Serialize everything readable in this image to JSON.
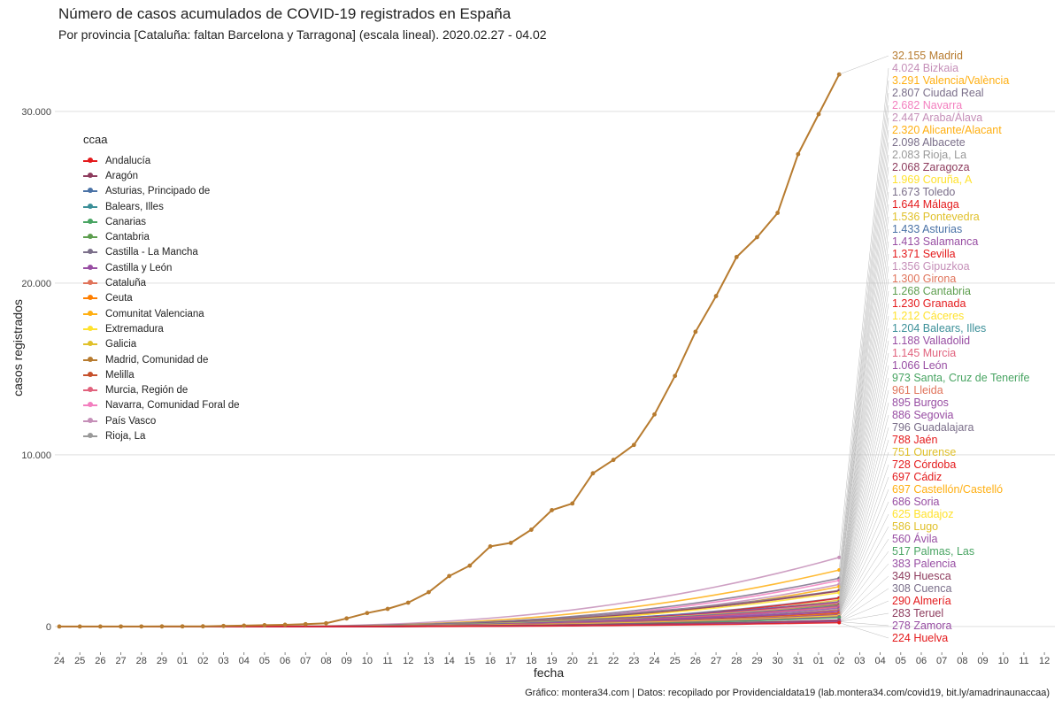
{
  "title": "Número de casos acumulados de COVID-19 registrados en España",
  "subtitle": "Por provincia [Cataluña: faltan Barcelona y Tarragona] (escala lineal). 2020.02.27 - 04.02",
  "caption": "Gráfico: montera34.com | Datos: recopilado por Providencialdata19 (lab.montera34.com/covid19, bit.ly/amadrinaunaccaa)",
  "legend_title": "ccaa",
  "chart_data": {
    "type": "line",
    "xlabel": "fecha",
    "ylabel": "casos registrados",
    "x_tick_labels": [
      "24",
      "25",
      "26",
      "27",
      "28",
      "29",
      "01",
      "02",
      "03",
      "04",
      "05",
      "06",
      "07",
      "08",
      "09",
      "10",
      "11",
      "12",
      "13",
      "14",
      "15",
      "16",
      "17",
      "18",
      "19",
      "20",
      "21",
      "22",
      "23",
      "24",
      "25",
      "26",
      "27",
      "28",
      "29",
      "30",
      "31",
      "01",
      "02",
      "03",
      "04",
      "05",
      "06",
      "07",
      "08",
      "09",
      "10",
      "11",
      "12"
    ],
    "y_ticks": [
      0,
      10000,
      20000,
      30000
    ],
    "y_tick_labels": [
      "0",
      "10.000",
      "20.000",
      "30.000"
    ],
    "ylim": [
      -1500,
      33500
    ],
    "grid": "horizontal",
    "legend_position": "left",
    "ccaa": [
      {
        "name": "Andalucía",
        "color": "#e41a1c"
      },
      {
        "name": "Aragón",
        "color": "#8e3c5e"
      },
      {
        "name": "Asturias, Principado de",
        "color": "#4a72a6"
      },
      {
        "name": "Balears, Illes",
        "color": "#3b8f98"
      },
      {
        "name": "Canarias",
        "color": "#48a462"
      },
      {
        "name": "Cantabria",
        "color": "#5d9e4e"
      },
      {
        "name": "Castilla - La Mancha",
        "color": "#7b6f8a"
      },
      {
        "name": "Castilla y León",
        "color": "#984ea3"
      },
      {
        "name": "Cataluña",
        "color": "#e0735a"
      },
      {
        "name": "Ceuta",
        "color": "#ff7f00"
      },
      {
        "name": "Comunitat Valenciana",
        "color": "#ffaf12"
      },
      {
        "name": "Extremadura",
        "color": "#ffe22e"
      },
      {
        "name": "Galicia",
        "color": "#e0c02a"
      },
      {
        "name": "Madrid, Comunidad de",
        "color": "#b77b2f"
      },
      {
        "name": "Melilla",
        "color": "#c6512c"
      },
      {
        "name": "Murcia, Región de",
        "color": "#e1627d"
      },
      {
        "name": "Navarra, Comunidad Foral de",
        "color": "#f37fbf"
      },
      {
        "name": "País Vasco",
        "color": "#c58fb8"
      },
      {
        "name": "Rioja, La",
        "color": "#999999"
      }
    ],
    "madrid_series": {
      "name": "Madrid",
      "start_index": 0,
      "values": [
        0,
        0,
        0,
        1,
        2,
        5,
        8,
        12,
        29,
        49,
        76,
        100,
        137,
        190,
        469,
        782,
        1024,
        1388,
        2000,
        2940,
        3544,
        4665,
        4871,
        5637,
        6777,
        7165,
        8921,
        9702,
        10575,
        12352,
        14597,
        17166,
        19243,
        21520,
        22677,
        24090,
        27509,
        29840,
        32155
      ]
    },
    "end_labels": [
      {
        "province": "Madrid",
        "value": "32.155",
        "cases": 32155,
        "ccaa": 13
      },
      {
        "province": "Bizkaia",
        "value": "4.024",
        "cases": 4024,
        "ccaa": 17
      },
      {
        "province": "Valencia/València",
        "value": "3.291",
        "cases": 3291,
        "ccaa": 10
      },
      {
        "province": "Ciudad Real",
        "value": "2.807",
        "cases": 2807,
        "ccaa": 6
      },
      {
        "province": "Navarra",
        "value": "2.682",
        "cases": 2682,
        "ccaa": 16
      },
      {
        "province": "Araba/Álava",
        "value": "2.447",
        "cases": 2447,
        "ccaa": 17
      },
      {
        "province": "Alicante/Alacant",
        "value": "2.320",
        "cases": 2320,
        "ccaa": 10
      },
      {
        "province": "Albacete",
        "value": "2.098",
        "cases": 2098,
        "ccaa": 6
      },
      {
        "province": "Rioja, La",
        "value": "2.083",
        "cases": 2083,
        "ccaa": 18
      },
      {
        "province": "Zaragoza",
        "value": "2.068",
        "cases": 2068,
        "ccaa": 1
      },
      {
        "province": "Coruña, A",
        "value": "1.969",
        "cases": 1969,
        "ccaa": 11
      },
      {
        "province": "Toledo",
        "value": "1.673",
        "cases": 1673,
        "ccaa": 6
      },
      {
        "province": "Málaga",
        "value": "1.644",
        "cases": 1644,
        "ccaa": 0
      },
      {
        "province": "Pontevedra",
        "value": "1.536",
        "cases": 1536,
        "ccaa": 12
      },
      {
        "province": "Asturias",
        "value": "1.433",
        "cases": 1433,
        "ccaa": 2
      },
      {
        "province": "Salamanca",
        "value": "1.413",
        "cases": 1413,
        "ccaa": 7
      },
      {
        "province": "Sevilla",
        "value": "1.371",
        "cases": 1371,
        "ccaa": 0
      },
      {
        "province": "Gipuzkoa",
        "value": "1.356",
        "cases": 1356,
        "ccaa": 17
      },
      {
        "province": "Girona",
        "value": "1.300",
        "cases": 1300,
        "ccaa": 8
      },
      {
        "province": "Cantabria",
        "value": "1.268",
        "cases": 1268,
        "ccaa": 5
      },
      {
        "province": "Granada",
        "value": "1.230",
        "cases": 1230,
        "ccaa": 0
      },
      {
        "province": "Cáceres",
        "value": "1.212",
        "cases": 1212,
        "ccaa": 11
      },
      {
        "province": "Balears, Illes",
        "value": "1.204",
        "cases": 1204,
        "ccaa": 3
      },
      {
        "province": "Valladolid",
        "value": "1.188",
        "cases": 1188,
        "ccaa": 7
      },
      {
        "province": "Murcia",
        "value": "1.145",
        "cases": 1145,
        "ccaa": 15
      },
      {
        "province": "León",
        "value": "1.066",
        "cases": 1066,
        "ccaa": 7
      },
      {
        "province": "Santa, Cruz de Tenerife",
        "value": "973",
        "cases": 973,
        "ccaa": 4
      },
      {
        "province": "Lleida",
        "value": "961",
        "cases": 961,
        "ccaa": 8
      },
      {
        "province": "Burgos",
        "value": "895",
        "cases": 895,
        "ccaa": 7
      },
      {
        "province": "Segovia",
        "value": "886",
        "cases": 886,
        "ccaa": 7
      },
      {
        "province": "Guadalajara",
        "value": "796",
        "cases": 796,
        "ccaa": 6
      },
      {
        "province": "Jaén",
        "value": "788",
        "cases": 788,
        "ccaa": 0
      },
      {
        "province": "Ourense",
        "value": "751",
        "cases": 751,
        "ccaa": 12
      },
      {
        "province": "Córdoba",
        "value": "728",
        "cases": 728,
        "ccaa": 0
      },
      {
        "province": "Cádiz",
        "value": "697",
        "cases": 697,
        "ccaa": 0
      },
      {
        "province": "Castellón/Castelló",
        "value": "697",
        "cases": 697,
        "ccaa": 10
      },
      {
        "province": "Soria",
        "value": "686",
        "cases": 686,
        "ccaa": 7
      },
      {
        "province": "Badajoz",
        "value": "625",
        "cases": 625,
        "ccaa": 11
      },
      {
        "province": "Lugo",
        "value": "586",
        "cases": 586,
        "ccaa": 12
      },
      {
        "province": "Ávila",
        "value": "560",
        "cases": 560,
        "ccaa": 7
      },
      {
        "province": "Palmas, Las",
        "value": "517",
        "cases": 517,
        "ccaa": 4
      },
      {
        "province": "Palencia",
        "value": "383",
        "cases": 383,
        "ccaa": 7
      },
      {
        "province": "Huesca",
        "value": "349",
        "cases": 349,
        "ccaa": 1
      },
      {
        "province": "Cuenca",
        "value": "308",
        "cases": 308,
        "ccaa": 6
      },
      {
        "province": "Almería",
        "value": "290",
        "cases": 290,
        "ccaa": 0
      },
      {
        "province": "Teruel",
        "value": "283",
        "cases": 283,
        "ccaa": 1
      },
      {
        "province": "Zamora",
        "value": "278",
        "cases": 278,
        "ccaa": 7
      },
      {
        "province": "Huelva",
        "value": "224",
        "cases": 224,
        "ccaa": 0
      }
    ]
  }
}
